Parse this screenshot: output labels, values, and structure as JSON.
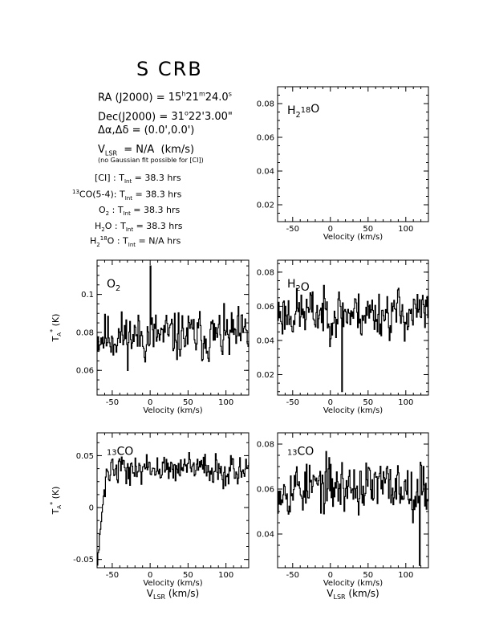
{
  "header": {
    "title": "S CRB",
    "ra_label": "RA (J2000) =",
    "ra_value": "15h21m24.0s",
    "dec_label": "Dec(J2000) =",
    "dec_value": "31°22'3.00\"",
    "offset_line": "Δα,Δδ = (0.0',0.0')",
    "vlsr_line": "VLSR = N/A (km/s)",
    "note": "(no Gaussian fit possible for [CI])"
  },
  "integrations": [
    {
      "species": "[CI]",
      "tint": "TInt = 38.3 hrs"
    },
    {
      "species": "13CO(5-4):",
      "tint": "TInt = 38.3 hrs"
    },
    {
      "species": "O2",
      "tint": "TInt = 38.3 hrs"
    },
    {
      "species": "H2O",
      "tint": "TInt = 38.3 hrs"
    },
    {
      "species": "H2 18O",
      "tint": "TInt = N/A hrs"
    }
  ],
  "chart_data": [
    {
      "id": "h218o",
      "type": "line",
      "label": "H2 18O",
      "xlabel": "Velocity (km/s)",
      "ylabel": "",
      "xlim": [
        -70,
        130
      ],
      "ylim": [
        0.01,
        0.09
      ],
      "xticks": [
        -50,
        0,
        50,
        100
      ],
      "yticks": [
        0.02,
        0.04,
        0.06,
        0.08
      ],
      "ytick_labels": [
        "0.02",
        "0.04",
        "0.06",
        "0.08"
      ],
      "series": []
    },
    {
      "id": "o2",
      "type": "line",
      "label": "O2",
      "xlabel": "Velocity (km/s)",
      "ylabel": "TA* (K)",
      "xlim": [
        -70,
        130
      ],
      "ylim": [
        0.047,
        0.118
      ],
      "xticks": [
        -50,
        0,
        50,
        100
      ],
      "yticks": [
        0.06,
        0.08,
        0.1
      ],
      "ytick_labels": [
        "0.06",
        "0.08",
        "0.1"
      ],
      "series": [
        {
          "noise": {
            "mean": 0.078,
            "amp": 0.011,
            "seed": 11
          },
          "spike": {
            "x": 0,
            "y": 0.115
          }
        }
      ]
    },
    {
      "id": "h2o",
      "type": "line",
      "label": "H2O",
      "xlabel": "Velocity (km/s)",
      "ylabel": "",
      "xlim": [
        -70,
        130
      ],
      "ylim": [
        0.008,
        0.087
      ],
      "xticks": [
        -50,
        0,
        50,
        100
      ],
      "yticks": [
        0.02,
        0.04,
        0.06,
        0.08
      ],
      "ytick_labels": [
        "0.02",
        "0.04",
        "0.06",
        "0.08"
      ],
      "series": [
        {
          "noise": {
            "mean": 0.056,
            "amp": 0.012,
            "seed": 23
          },
          "spike": {
            "x": 15,
            "y": 0.01
          }
        }
      ]
    },
    {
      "id": "13co_a",
      "type": "line",
      "label": "13CO",
      "xlabel": "Velocity (km/s)",
      "ylabel": "TA* (K)",
      "xlabel2": "VLSR (km/s)",
      "xlim": [
        -70,
        130
      ],
      "ylim": [
        -0.058,
        0.072
      ],
      "xticks": [
        -50,
        0,
        50,
        100
      ],
      "yticks": [
        -0.05,
        0,
        0.05
      ],
      "ytick_labels": [
        "-0.05",
        "0",
        "0.05"
      ],
      "series": [
        {
          "noise": {
            "mean": 0.037,
            "amp": 0.012,
            "seed": 37
          },
          "rise": {
            "from_x": -70,
            "to_x": -58,
            "from_y": -0.05
          }
        }
      ]
    },
    {
      "id": "13co_b",
      "type": "line",
      "label": "13CO",
      "xlabel": "Velocity (km/s)",
      "ylabel": "",
      "xlabel2": "VLSR (km/s)",
      "xlim": [
        -70,
        130
      ],
      "ylim": [
        0.025,
        0.085
      ],
      "xticks": [
        -50,
        0,
        50,
        100
      ],
      "yticks": [
        0.04,
        0.06,
        0.08
      ],
      "ytick_labels": [
        "0.04",
        "0.06",
        "0.08"
      ],
      "series": [
        {
          "noise": {
            "mean": 0.061,
            "amp": 0.01,
            "seed": 53
          },
          "spike": {
            "x": 118,
            "y": 0.026
          }
        }
      ]
    }
  ]
}
